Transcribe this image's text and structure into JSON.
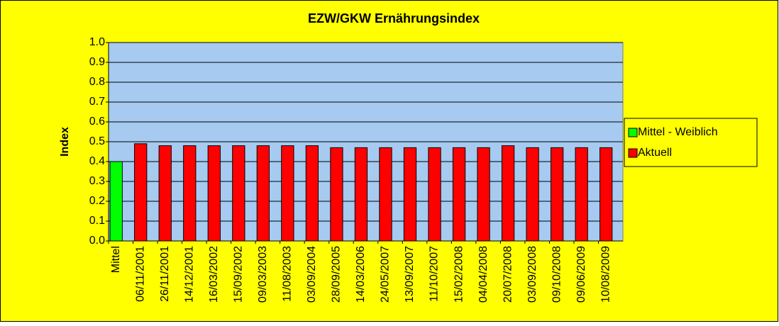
{
  "chart_data": {
    "type": "bar",
    "title": "EZW/GKW Ernährungsindex",
    "y_label": "Index",
    "categories": [
      "Mittel",
      "06/11/2001",
      "26/11/2001",
      "14/12/2001",
      "16/03/2002",
      "15/09/2002",
      "09/03/2003",
      "11/08/2003",
      "03/09/2004",
      "28/09/2005",
      "14/03/2006",
      "24/05/2007",
      "13/09/2007",
      "11/10/2007",
      "15/02/2008",
      "04/04/2008",
      "20/07/2008",
      "03/09/2008",
      "09/10/2008",
      "09/06/2009",
      "10/08/2009"
    ],
    "series": [
      {
        "name": "Mittel - Weiblich",
        "color": "#00ff00",
        "values": [
          0.4,
          null,
          null,
          null,
          null,
          null,
          null,
          null,
          null,
          null,
          null,
          null,
          null,
          null,
          null,
          null,
          null,
          null,
          null,
          null,
          null
        ]
      },
      {
        "name": "Aktuell",
        "color": "#ff0000",
        "values": [
          null,
          0.49,
          0.48,
          0.48,
          0.48,
          0.48,
          0.48,
          0.48,
          0.48,
          0.47,
          0.47,
          0.47,
          0.47,
          0.47,
          0.47,
          0.47,
          0.48,
          0.47,
          0.47,
          0.47,
          0.47
        ]
      }
    ],
    "ylim": [
      0,
      1
    ],
    "yticks": [
      {
        "value": 0,
        "label": "0.0"
      },
      0.1,
      0.2,
      0.3,
      0.4,
      0.5,
      0.6,
      0.7,
      0.8,
      0.9,
      {
        "value": 1,
        "label": "1.0"
      }
    ],
    "grid": true,
    "legend": "right",
    "background": "#ffff00",
    "plot_background": "#a6caf0"
  }
}
